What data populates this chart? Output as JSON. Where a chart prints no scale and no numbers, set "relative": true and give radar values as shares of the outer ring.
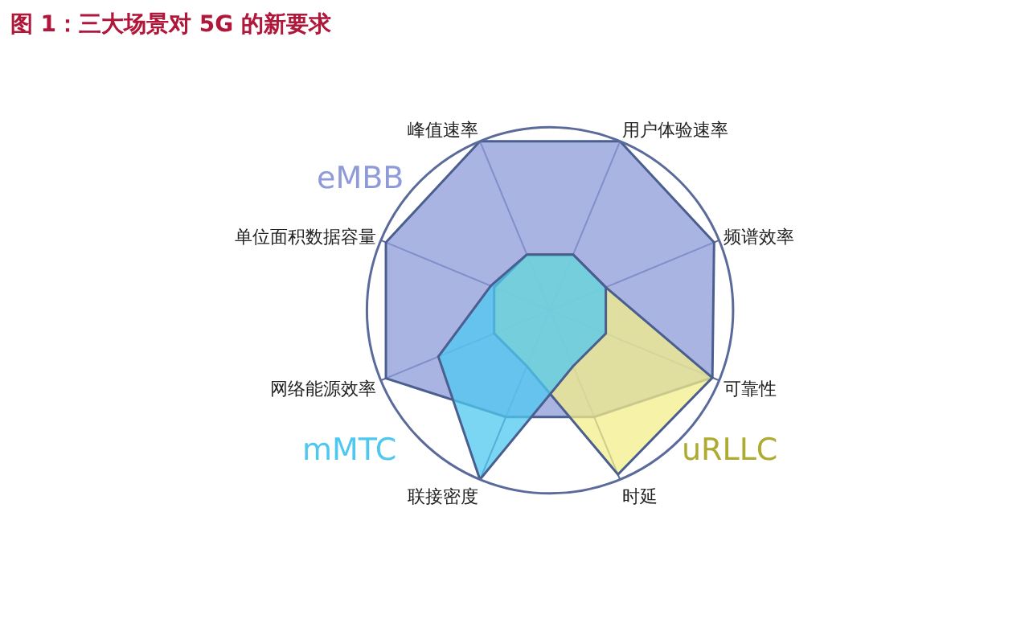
{
  "chart_data": {
    "type": "radar",
    "title": "图 1：三大场景对 5G 的新要求",
    "relative": true,
    "legend": false,
    "categories": [
      "峰值速率",
      "用户体验速率",
      "频谱效率",
      "可靠性",
      "时延",
      "联接密度",
      "网络能源效率",
      "单位面积数据容量"
    ],
    "series": [
      {
        "name": "eMBB",
        "color": "#8e9bd8",
        "values": [
          1.0,
          1.0,
          0.97,
          0.96,
          0.63,
          0.63,
          0.97,
          0.97
        ]
      },
      {
        "name": "uRLLC",
        "color": "#f3ee8a",
        "values": [
          0.33,
          0.33,
          0.33,
          0.96,
          0.97,
          0.33,
          0.33,
          0.33
        ]
      },
      {
        "name": "mMTC",
        "color": "#4fc8f0",
        "values": [
          0.33,
          0.33,
          0.33,
          0.33,
          0.33,
          1.0,
          0.66,
          0.35
        ]
      }
    ]
  }
}
